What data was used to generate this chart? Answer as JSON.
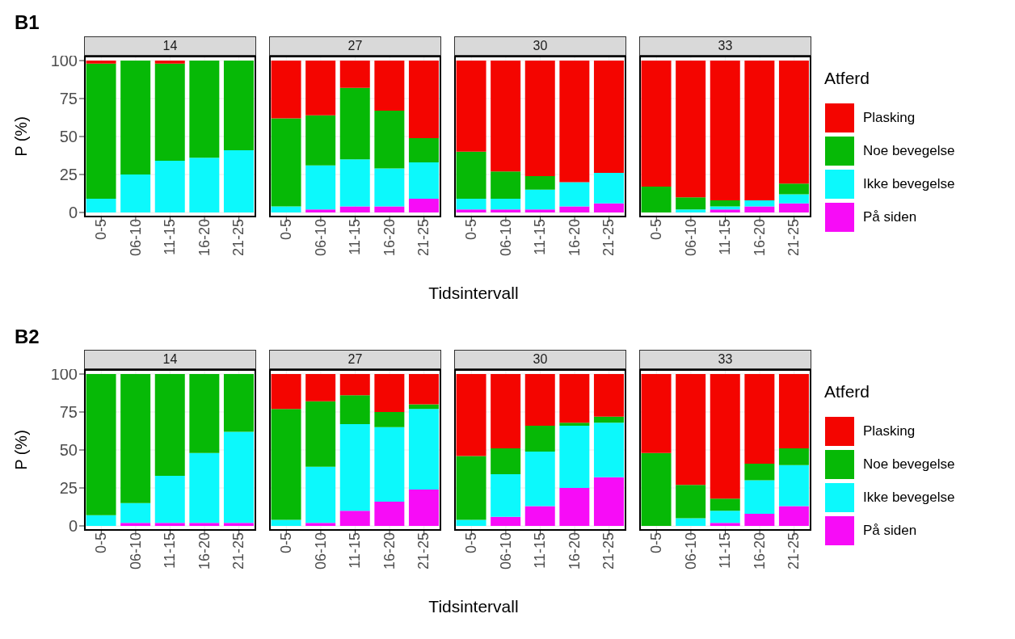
{
  "chart_data": [
    {
      "type": "bar",
      "stacked": true,
      "title": "14",
      "ylabel": "P (%)",
      "annotations": [
        "B1"
      ],
      "categories": [
        "0-5",
        "06-10",
        "11-15",
        "16-20",
        "21-25"
      ],
      "ylim": [
        0,
        100
      ],
      "yticks": [
        0,
        25,
        50,
        75,
        100
      ],
      "grid": true,
      "series": [
        {
          "color": "#f70cf7",
          "values": [
            0,
            0,
            0,
            0,
            0
          ]
        },
        {
          "color": "#0cf9fc",
          "values": [
            9,
            25,
            34,
            36,
            41
          ]
        },
        {
          "color": "#06b906",
          "values": [
            89,
            75,
            64,
            64,
            59
          ]
        },
        {
          "color": "#f40500",
          "values": [
            2,
            0,
            2,
            0,
            0
          ]
        }
      ]
    },
    {
      "type": "bar",
      "stacked": true,
      "title": "27",
      "xlabel": "Tidsintervall",
      "categories": [
        "0-5",
        "06-10",
        "11-15",
        "16-20",
        "21-25"
      ],
      "ylim": [
        0,
        100
      ],
      "yticks": [
        0,
        25,
        50,
        75,
        100
      ],
      "grid": true,
      "tick_labels": "x",
      "series": [
        {
          "color": "#f70cf7",
          "values": [
            0,
            2,
            4,
            4,
            9
          ]
        },
        {
          "color": "#0cf9fc",
          "values": [
            4,
            29,
            31,
            25,
            24
          ]
        },
        {
          "color": "#06b906",
          "values": [
            58,
            33,
            47,
            38,
            16
          ]
        },
        {
          "color": "#f40500",
          "values": [
            38,
            36,
            18,
            33,
            51
          ]
        }
      ]
    },
    {
      "type": "bar",
      "stacked": true,
      "title": "30",
      "categories": [
        "0-5",
        "06-10",
        "11-15",
        "16-20",
        "21-25"
      ],
      "ylim": [
        0,
        100
      ],
      "yticks": [
        0,
        25,
        50,
        75,
        100
      ],
      "grid": true,
      "tick_labels": "x",
      "series": [
        {
          "color": "#f70cf7",
          "values": [
            2,
            2,
            2,
            4,
            6
          ]
        },
        {
          "color": "#0cf9fc",
          "values": [
            7,
            7,
            13,
            16,
            20
          ]
        },
        {
          "color": "#06b906",
          "values": [
            31,
            18,
            9,
            0,
            0
          ]
        },
        {
          "color": "#f40500",
          "values": [
            60,
            73,
            76,
            80,
            74
          ]
        }
      ]
    },
    {
      "type": "bar",
      "stacked": true,
      "title": "33",
      "categories": [
        "0-5",
        "06-10",
        "11-15",
        "16-20",
        "21-25"
      ],
      "ylim": [
        0,
        100
      ],
      "yticks": [
        0,
        25,
        50,
        75,
        100
      ],
      "grid": true,
      "tick_labels": "x",
      "legend": "right",
      "legend_title": "Atferd",
      "series": [
        {
          "name": "På siden",
          "color": "#f70cf7",
          "values": [
            0,
            0,
            2,
            4,
            6
          ]
        },
        {
          "name": "Ikke bevegelse",
          "color": "#0cf9fc",
          "values": [
            0,
            2,
            2,
            4,
            6
          ]
        },
        {
          "name": "Noe bevegelse",
          "color": "#06b906",
          "values": [
            17,
            8,
            4,
            0,
            7
          ]
        },
        {
          "name": "Plasking",
          "color": "#f40500",
          "values": [
            83,
            90,
            92,
            92,
            81
          ]
        }
      ]
    },
    {
      "type": "bar",
      "stacked": true,
      "title": "14",
      "ylabel": "P (%)",
      "annotations": [
        "B2"
      ],
      "categories": [
        "0-5",
        "06-10",
        "11-15",
        "16-20",
        "21-25"
      ],
      "ylim": [
        0,
        100
      ],
      "yticks": [
        0,
        25,
        50,
        75,
        100
      ],
      "grid": true,
      "series": [
        {
          "color": "#f70cf7",
          "values": [
            0,
            2,
            2,
            2,
            2
          ]
        },
        {
          "color": "#0cf9fc",
          "values": [
            7,
            13,
            31,
            46,
            60
          ]
        },
        {
          "color": "#06b906",
          "values": [
            93,
            85,
            67,
            52,
            38
          ]
        },
        {
          "color": "#f40500",
          "values": [
            0,
            0,
            0,
            0,
            0
          ]
        }
      ]
    },
    {
      "type": "bar",
      "stacked": true,
      "title": "27",
      "xlabel": "Tidsintervall",
      "categories": [
        "0-5",
        "06-10",
        "11-15",
        "16-20",
        "21-25"
      ],
      "ylim": [
        0,
        100
      ],
      "yticks": [
        0,
        25,
        50,
        75,
        100
      ],
      "grid": true,
      "tick_labels": "x",
      "series": [
        {
          "color": "#f70cf7",
          "values": [
            0,
            2,
            10,
            16,
            24
          ]
        },
        {
          "color": "#0cf9fc",
          "values": [
            4,
            37,
            57,
            49,
            53
          ]
        },
        {
          "color": "#06b906",
          "values": [
            73,
            43,
            19,
            10,
            3
          ]
        },
        {
          "color": "#f40500",
          "values": [
            23,
            18,
            14,
            25,
            20
          ]
        }
      ]
    },
    {
      "type": "bar",
      "stacked": true,
      "title": "30",
      "categories": [
        "0-5",
        "06-10",
        "11-15",
        "16-20",
        "21-25"
      ],
      "ylim": [
        0,
        100
      ],
      "yticks": [
        0,
        25,
        50,
        75,
        100
      ],
      "grid": true,
      "tick_labels": "x",
      "series": [
        {
          "color": "#f70cf7",
          "values": [
            0,
            6,
            13,
            25,
            32
          ]
        },
        {
          "color": "#0cf9fc",
          "values": [
            4,
            28,
            36,
            41,
            36
          ]
        },
        {
          "color": "#06b906",
          "values": [
            42,
            17,
            17,
            2,
            4
          ]
        },
        {
          "color": "#f40500",
          "values": [
            54,
            49,
            34,
            32,
            28
          ]
        }
      ]
    },
    {
      "type": "bar",
      "stacked": true,
      "title": "33",
      "categories": [
        "0-5",
        "06-10",
        "11-15",
        "16-20",
        "21-25"
      ],
      "ylim": [
        0,
        100
      ],
      "yticks": [
        0,
        25,
        50,
        75,
        100
      ],
      "grid": true,
      "tick_labels": "x",
      "legend": "right",
      "legend_title": "Atferd",
      "series": [
        {
          "name": "På siden",
          "color": "#f70cf7",
          "values": [
            0,
            0,
            2,
            8,
            13
          ]
        },
        {
          "name": "Ikke bevegelse",
          "color": "#0cf9fc",
          "values": [
            0,
            5,
            8,
            22,
            27
          ]
        },
        {
          "name": "Noe bevegelse",
          "color": "#06b906",
          "values": [
            48,
            22,
            8,
            11,
            11
          ]
        },
        {
          "name": "Plasking",
          "color": "#f40500",
          "values": [
            52,
            73,
            82,
            59,
            49
          ]
        }
      ]
    }
  ]
}
